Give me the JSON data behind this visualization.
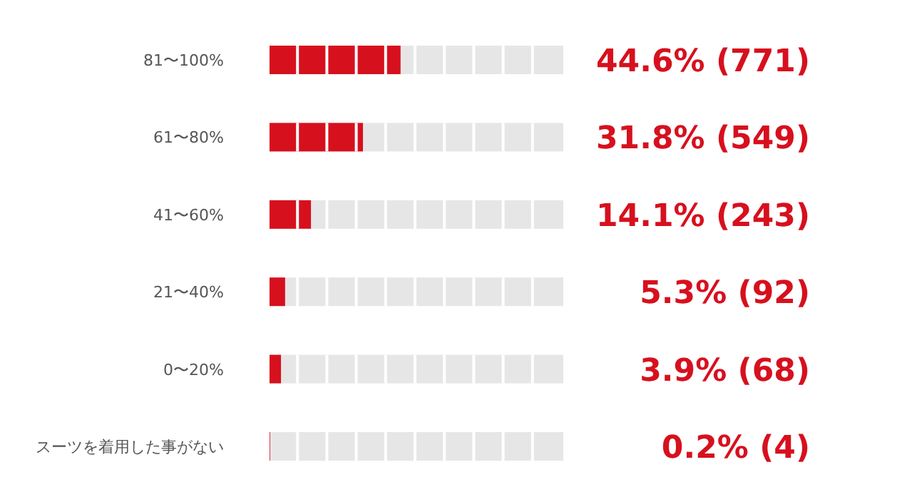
{
  "chart_data": {
    "type": "bar",
    "orientation": "horizontal",
    "categories": [
      "81〜100%",
      "61〜80%",
      "41〜60%",
      "21〜40%",
      "0〜20%",
      "スーツを着用した事がない"
    ],
    "values": [
      44.6,
      31.8,
      14.1,
      5.3,
      3.9,
      0.2
    ],
    "value_labels": [
      "44.6% (771)",
      "31.8% (549)",
      "14.1% (243)",
      "5.3% (92)",
      "3.9% (68)",
      "0.2% (4)"
    ],
    "color": "#d7101e",
    "bands": [
      {
        "axis": "x",
        "from": 0,
        "to": 100,
        "color": "#e6e6e6"
      }
    ],
    "xlim": [
      0,
      100
    ],
    "tick_labels": "y"
  }
}
